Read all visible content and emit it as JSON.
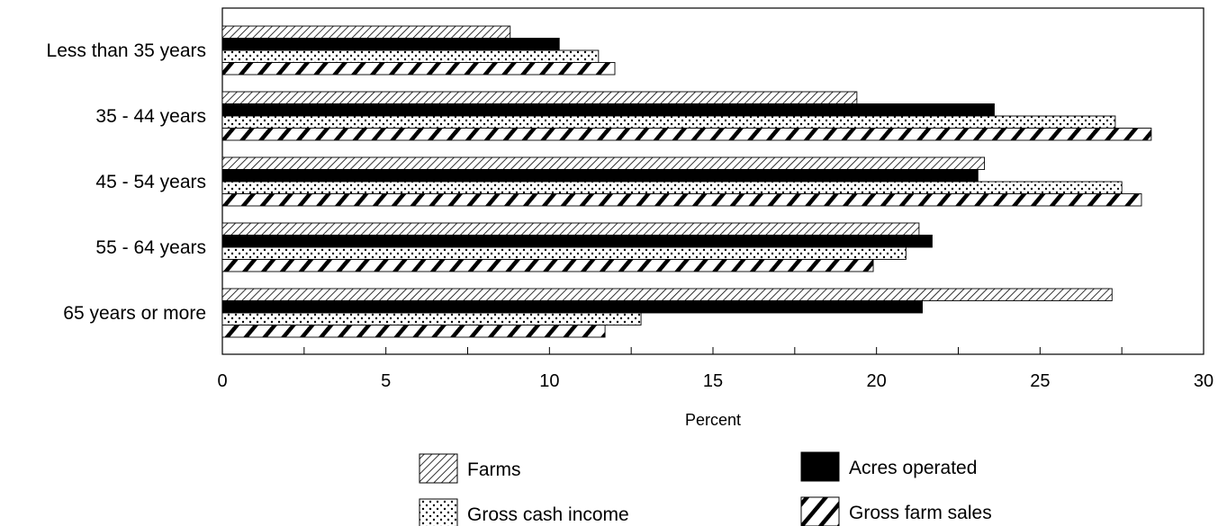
{
  "chart_data": {
    "type": "bar",
    "orientation": "horizontal",
    "categories": [
      "Less than 35 years",
      "35 - 44 years",
      "45 - 54 years",
      "55 - 64 years",
      "65 years or more"
    ],
    "series": [
      {
        "name": "Farms",
        "pattern": "diagonal-hatch",
        "values": [
          8.8,
          19.4,
          23.3,
          21.3,
          27.2
        ]
      },
      {
        "name": "Acres operated",
        "pattern": "solid",
        "color": "#000000",
        "values": [
          10.3,
          23.6,
          23.1,
          21.7,
          21.4
        ]
      },
      {
        "name": "Gross cash income",
        "pattern": "dots",
        "values": [
          11.5,
          27.3,
          27.5,
          20.9,
          12.8
        ]
      },
      {
        "name": "Gross farm sales",
        "pattern": "wide-slash",
        "values": [
          12.0,
          28.4,
          28.1,
          19.9,
          11.7
        ]
      }
    ],
    "xlabel": "Percent",
    "xlim": [
      0,
      30
    ],
    "xticks": [
      0,
      5,
      10,
      15,
      20,
      25,
      30
    ],
    "grid": false,
    "legend_position": "bottom"
  }
}
